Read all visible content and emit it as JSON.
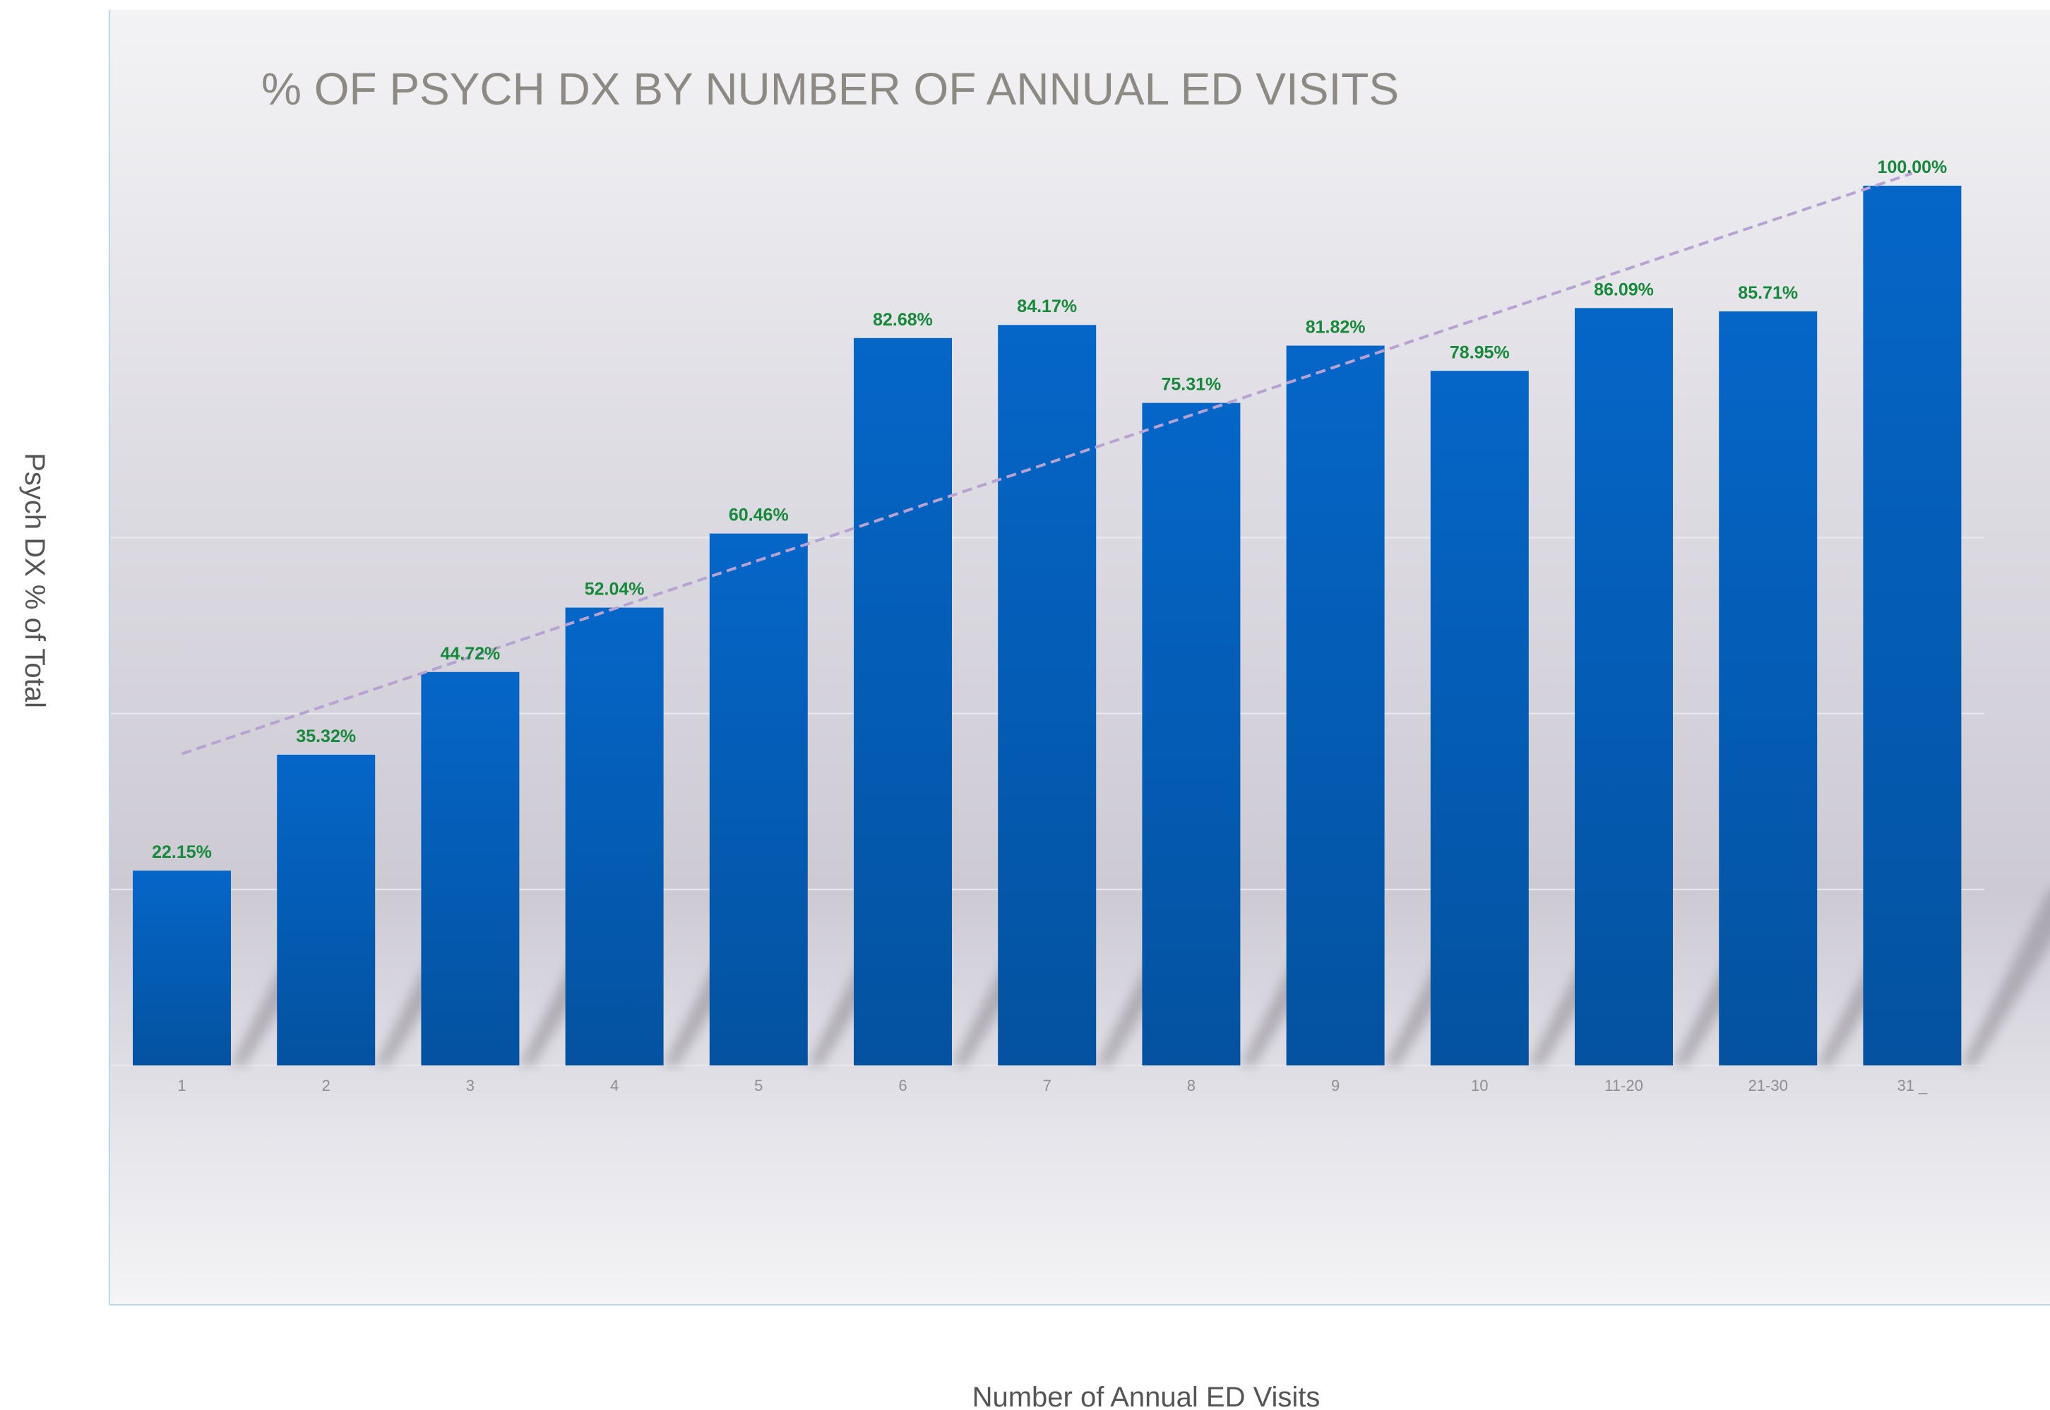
{
  "chart_data": {
    "type": "bar",
    "title": "% OF PSYCH DX BY NUMBER OF ANNUAL ED VISITS",
    "xlabel": "Number of Annual ED Visits",
    "ylabel": "Psych DX % of Total",
    "categories": [
      "1",
      "2",
      "3",
      "4",
      "5",
      "6",
      "7",
      "8",
      "9",
      "10",
      "11-20",
      "21-30",
      "31 _"
    ],
    "values": [
      22.15,
      35.32,
      44.72,
      52.04,
      60.46,
      82.68,
      84.17,
      75.31,
      81.82,
      78.95,
      86.09,
      85.71,
      100.0
    ],
    "data_labels": [
      "22.15%",
      "35.32%",
      "44.72%",
      "52.04%",
      "60.46%",
      "82.68%",
      "84.17%",
      "75.31%",
      "81.82%",
      "78.95%",
      "86.09%",
      "85.71%",
      "100.00%"
    ],
    "ylim": [
      0,
      100
    ],
    "gridlines_at": [
      20,
      40,
      60,
      100
    ],
    "trendline": {
      "type": "linear",
      "style": "dashed"
    },
    "grid": true,
    "legend": "none",
    "colors": {
      "bar_top": "#0566c8",
      "bar_bottom": "#0452a0",
      "data_label": "#16893a",
      "trendline": "#b7a3d2",
      "title": "#8c8a83"
    }
  }
}
